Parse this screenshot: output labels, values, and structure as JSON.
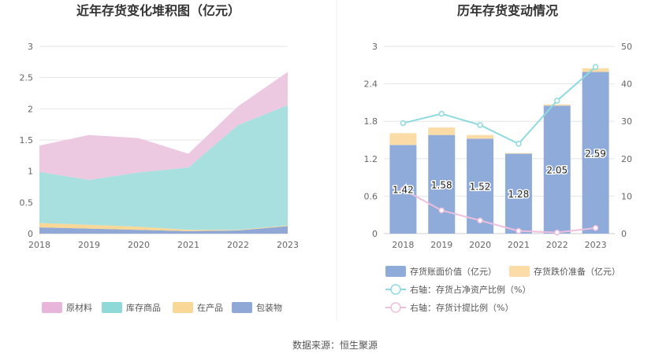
{
  "source": "数据来源：恒生聚源",
  "chart_data": [
    {
      "type": "area",
      "title": "近年存货变化堆积图（亿元）",
      "x": [
        "2018",
        "2019",
        "2020",
        "2021",
        "2022",
        "2023"
      ],
      "ylim": [
        0,
        3
      ],
      "yticks": [
        "0",
        "0.5",
        "1",
        "1.5",
        "2",
        "2.5",
        "3"
      ],
      "stacked": true,
      "grid": true,
      "legend_position": "bottom",
      "series": [
        {
          "name": "包装物",
          "values": [
            0.1,
            0.08,
            0.06,
            0.04,
            0.05,
            0.12
          ],
          "color": "#8fa8d6"
        },
        {
          "name": "在产品",
          "values": [
            0.07,
            0.06,
            0.05,
            0.02,
            0.01,
            0.01
          ],
          "color": "#f9d796"
        },
        {
          "name": "库存商品",
          "values": [
            0.82,
            0.72,
            0.87,
            1.0,
            1.68,
            1.93
          ],
          "color": "#a8e0e0"
        },
        {
          "name": "原材料",
          "values": [
            0.42,
            0.72,
            0.55,
            0.22,
            0.3,
            0.53
          ],
          "color": "#edc8e1"
        }
      ],
      "legend_order": [
        "原材料",
        "库存商品",
        "在产品",
        "包装物"
      ],
      "legend_colors": {
        "原材料": "#e7b6da",
        "库存商品": "#8fd9d9",
        "在产品": "#f9d796",
        "包装物": "#8fa8d6"
      }
    },
    {
      "type": "bar",
      "title": "历年存货变动情况",
      "categories": [
        "2018",
        "2019",
        "2020",
        "2021",
        "2022",
        "2023"
      ],
      "ylim": [
        0,
        3
      ],
      "yticks": [
        "0",
        "0.6",
        "1.2",
        "1.8",
        "2.4",
        "3"
      ],
      "y2lim": [
        0,
        50
      ],
      "y2ticks": [
        "0",
        "10",
        "20",
        "30",
        "40",
        "50"
      ],
      "grid": true,
      "legend_position": "bottom",
      "series": [
        {
          "name": "存货账面价值（亿元）",
          "values": [
            1.42,
            1.58,
            1.52,
            1.28,
            2.05,
            2.59
          ],
          "labels": [
            "1.42",
            "1.58",
            "1.52",
            "1.28",
            "2.05",
            "2.59"
          ],
          "color": "#8fabda",
          "axis": "left"
        },
        {
          "name": "存货跌价准备（亿元）",
          "values": [
            0.19,
            0.12,
            0.06,
            0.01,
            0.02,
            0.06
          ],
          "color": "#fbdca6",
          "axis": "left"
        },
        {
          "name": "右轴：存货占净资产比例（%）",
          "values": [
            29.5,
            32.0,
            29.0,
            24.0,
            35.5,
            44.5
          ],
          "color": "#8fd9e0",
          "axis": "right"
        },
        {
          "name": "右轴：存货计提比例（%）",
          "values": [
            11.8,
            6.2,
            3.5,
            0.7,
            0.3,
            1.5
          ],
          "color": "#edbfdc",
          "axis": "right"
        }
      ]
    }
  ]
}
